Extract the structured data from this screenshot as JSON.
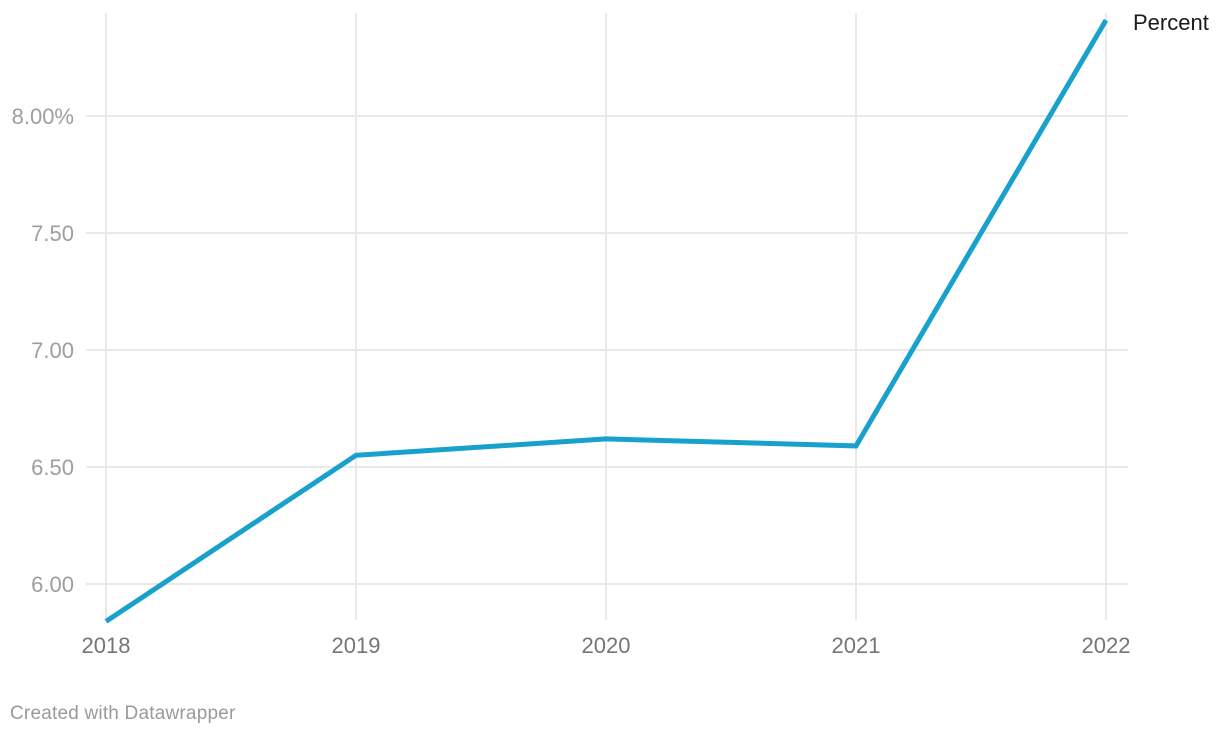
{
  "series_label": "Percent",
  "footer_credit": "Created with Datawrapper",
  "colors": {
    "line": "#18a1cd",
    "grid": "#e9e9e9",
    "x_tick_label": "#757575",
    "y_tick_label": "#9e9e9e",
    "series_label": "#1a1a1a",
    "footer": "#9a9a9a",
    "background": "#ffffff"
  },
  "chart_data": {
    "type": "line",
    "x": [
      "2018",
      "2019",
      "2020",
      "2021",
      "2022"
    ],
    "series": [
      {
        "name": "Percent",
        "values": [
          5.84,
          6.55,
          6.62,
          6.59,
          8.41
        ]
      }
    ],
    "title": "",
    "xlabel": "",
    "ylabel": "",
    "y_ticks": [
      {
        "value": 6.0,
        "label": "6.00"
      },
      {
        "value": 6.5,
        "label": "6.50"
      },
      {
        "value": 7.0,
        "label": "7.00"
      },
      {
        "value": 7.5,
        "label": "7.50"
      },
      {
        "value": 8.0,
        "label": "8.00%"
      }
    ],
    "ylim": [
      5.8,
      8.45
    ],
    "grid": true,
    "legend_position": "line-end-right"
  }
}
